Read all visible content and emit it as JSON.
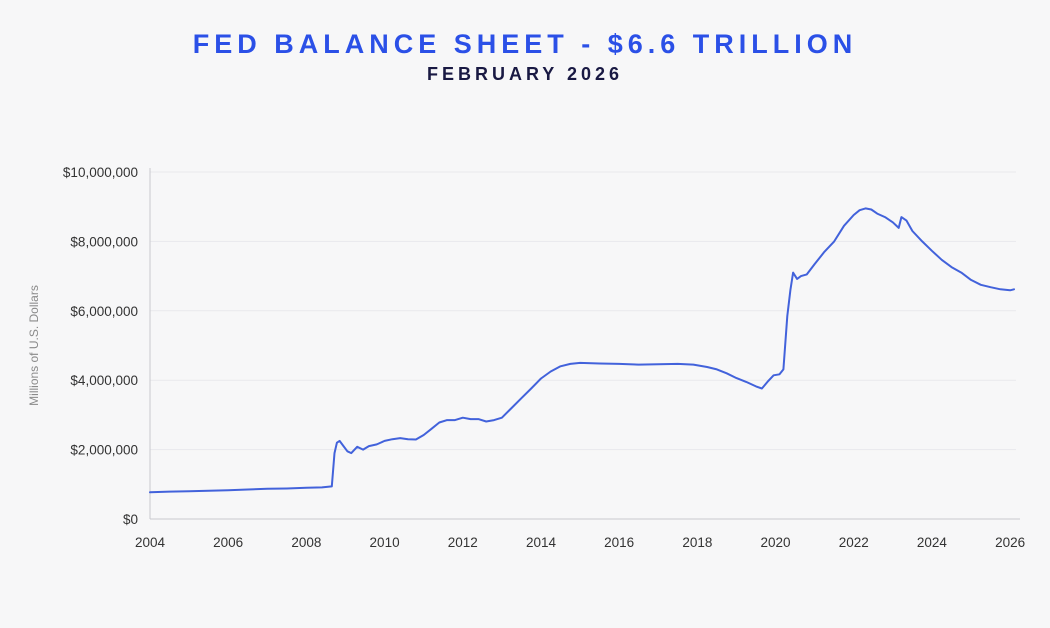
{
  "page": {
    "title": "FED BALANCE SHEET - $6.6 TRILLION",
    "subtitle": "FEBRUARY 2026"
  },
  "colors": {
    "background": "#f7f7f8",
    "title_blue": "#2b50e7",
    "subtitle_navy": "#191943",
    "line_blue": "#4262db",
    "axis_text": "#333333",
    "muted_text": "#8a8a8a",
    "gridline": "#e9e9ec",
    "axis_line": "#c9c9ce"
  },
  "chart_data": {
    "type": "line",
    "title": "FED BALANCE SHEET - $6.6 TRILLION",
    "subtitle": "FEBRUARY 2026",
    "xlabel": "",
    "ylabel": "Millions of U.S. Dollars",
    "xlim": [
      2004,
      2026.15
    ],
    "ylim": [
      0,
      10000000
    ],
    "grid": true,
    "legend": "none",
    "x_ticks": [
      {
        "value": 2004,
        "label": "2004"
      },
      {
        "value": 2006,
        "label": "2006"
      },
      {
        "value": 2008,
        "label": "2008"
      },
      {
        "value": 2010,
        "label": "2010"
      },
      {
        "value": 2012,
        "label": "2012"
      },
      {
        "value": 2014,
        "label": "2014"
      },
      {
        "value": 2016,
        "label": "2016"
      },
      {
        "value": 2018,
        "label": "2018"
      },
      {
        "value": 2020,
        "label": "2020"
      },
      {
        "value": 2022,
        "label": "2022"
      },
      {
        "value": 2024,
        "label": "2024"
      },
      {
        "value": 2026,
        "label": "2026"
      }
    ],
    "y_ticks": [
      {
        "value": 0,
        "label": "$0"
      },
      {
        "value": 2000000,
        "label": "$2,000,000"
      },
      {
        "value": 4000000,
        "label": "$4,000,000"
      },
      {
        "value": 6000000,
        "label": "$6,000,000"
      },
      {
        "value": 8000000,
        "label": "$8,000,000"
      },
      {
        "value": 10000000,
        "label": "$10,000,000"
      }
    ],
    "series": [
      {
        "name": "Fed total assets (millions of U.S. dollars)",
        "color": "#4262db",
        "points": [
          [
            2004.0,
            770000
          ],
          [
            2004.5,
            790000
          ],
          [
            2005.0,
            800000
          ],
          [
            2005.5,
            815000
          ],
          [
            2006.0,
            830000
          ],
          [
            2006.5,
            850000
          ],
          [
            2007.0,
            870000
          ],
          [
            2007.5,
            880000
          ],
          [
            2008.0,
            900000
          ],
          [
            2008.4,
            910000
          ],
          [
            2008.65,
            940000
          ],
          [
            2008.72,
            1900000
          ],
          [
            2008.78,
            2200000
          ],
          [
            2008.85,
            2250000
          ],
          [
            2008.95,
            2100000
          ],
          [
            2009.05,
            1950000
          ],
          [
            2009.15,
            1900000
          ],
          [
            2009.3,
            2080000
          ],
          [
            2009.45,
            2000000
          ],
          [
            2009.6,
            2100000
          ],
          [
            2009.8,
            2150000
          ],
          [
            2010.0,
            2250000
          ],
          [
            2010.2,
            2300000
          ],
          [
            2010.4,
            2330000
          ],
          [
            2010.6,
            2300000
          ],
          [
            2010.8,
            2290000
          ],
          [
            2011.0,
            2420000
          ],
          [
            2011.2,
            2600000
          ],
          [
            2011.4,
            2780000
          ],
          [
            2011.6,
            2850000
          ],
          [
            2011.8,
            2850000
          ],
          [
            2012.0,
            2920000
          ],
          [
            2012.2,
            2880000
          ],
          [
            2012.4,
            2880000
          ],
          [
            2012.6,
            2810000
          ],
          [
            2012.8,
            2850000
          ],
          [
            2013.0,
            2920000
          ],
          [
            2013.25,
            3200000
          ],
          [
            2013.5,
            3480000
          ],
          [
            2013.75,
            3760000
          ],
          [
            2014.0,
            4050000
          ],
          [
            2014.25,
            4250000
          ],
          [
            2014.5,
            4400000
          ],
          [
            2014.75,
            4470000
          ],
          [
            2015.0,
            4500000
          ],
          [
            2015.5,
            4480000
          ],
          [
            2016.0,
            4470000
          ],
          [
            2016.5,
            4450000
          ],
          [
            2017.0,
            4460000
          ],
          [
            2017.5,
            4470000
          ],
          [
            2017.9,
            4450000
          ],
          [
            2018.25,
            4380000
          ],
          [
            2018.5,
            4310000
          ],
          [
            2018.75,
            4200000
          ],
          [
            2019.0,
            4060000
          ],
          [
            2019.25,
            3950000
          ],
          [
            2019.5,
            3820000
          ],
          [
            2019.65,
            3760000
          ],
          [
            2019.8,
            3960000
          ],
          [
            2019.95,
            4140000
          ],
          [
            2020.1,
            4170000
          ],
          [
            2020.2,
            4310000
          ],
          [
            2020.3,
            5850000
          ],
          [
            2020.38,
            6600000
          ],
          [
            2020.45,
            7100000
          ],
          [
            2020.5,
            7010000
          ],
          [
            2020.55,
            6920000
          ],
          [
            2020.65,
            7000000
          ],
          [
            2020.8,
            7050000
          ],
          [
            2021.0,
            7350000
          ],
          [
            2021.25,
            7700000
          ],
          [
            2021.5,
            8000000
          ],
          [
            2021.75,
            8450000
          ],
          [
            2022.0,
            8760000
          ],
          [
            2022.15,
            8900000
          ],
          [
            2022.3,
            8950000
          ],
          [
            2022.45,
            8920000
          ],
          [
            2022.6,
            8800000
          ],
          [
            2022.8,
            8700000
          ],
          [
            2023.0,
            8550000
          ],
          [
            2023.15,
            8390000
          ],
          [
            2023.22,
            8700000
          ],
          [
            2023.35,
            8600000
          ],
          [
            2023.5,
            8300000
          ],
          [
            2023.75,
            8000000
          ],
          [
            2024.0,
            7730000
          ],
          [
            2024.25,
            7470000
          ],
          [
            2024.5,
            7260000
          ],
          [
            2024.75,
            7100000
          ],
          [
            2025.0,
            6890000
          ],
          [
            2025.25,
            6750000
          ],
          [
            2025.5,
            6680000
          ],
          [
            2025.75,
            6620000
          ],
          [
            2026.0,
            6590000
          ],
          [
            2026.1,
            6620000
          ]
        ]
      }
    ]
  }
}
